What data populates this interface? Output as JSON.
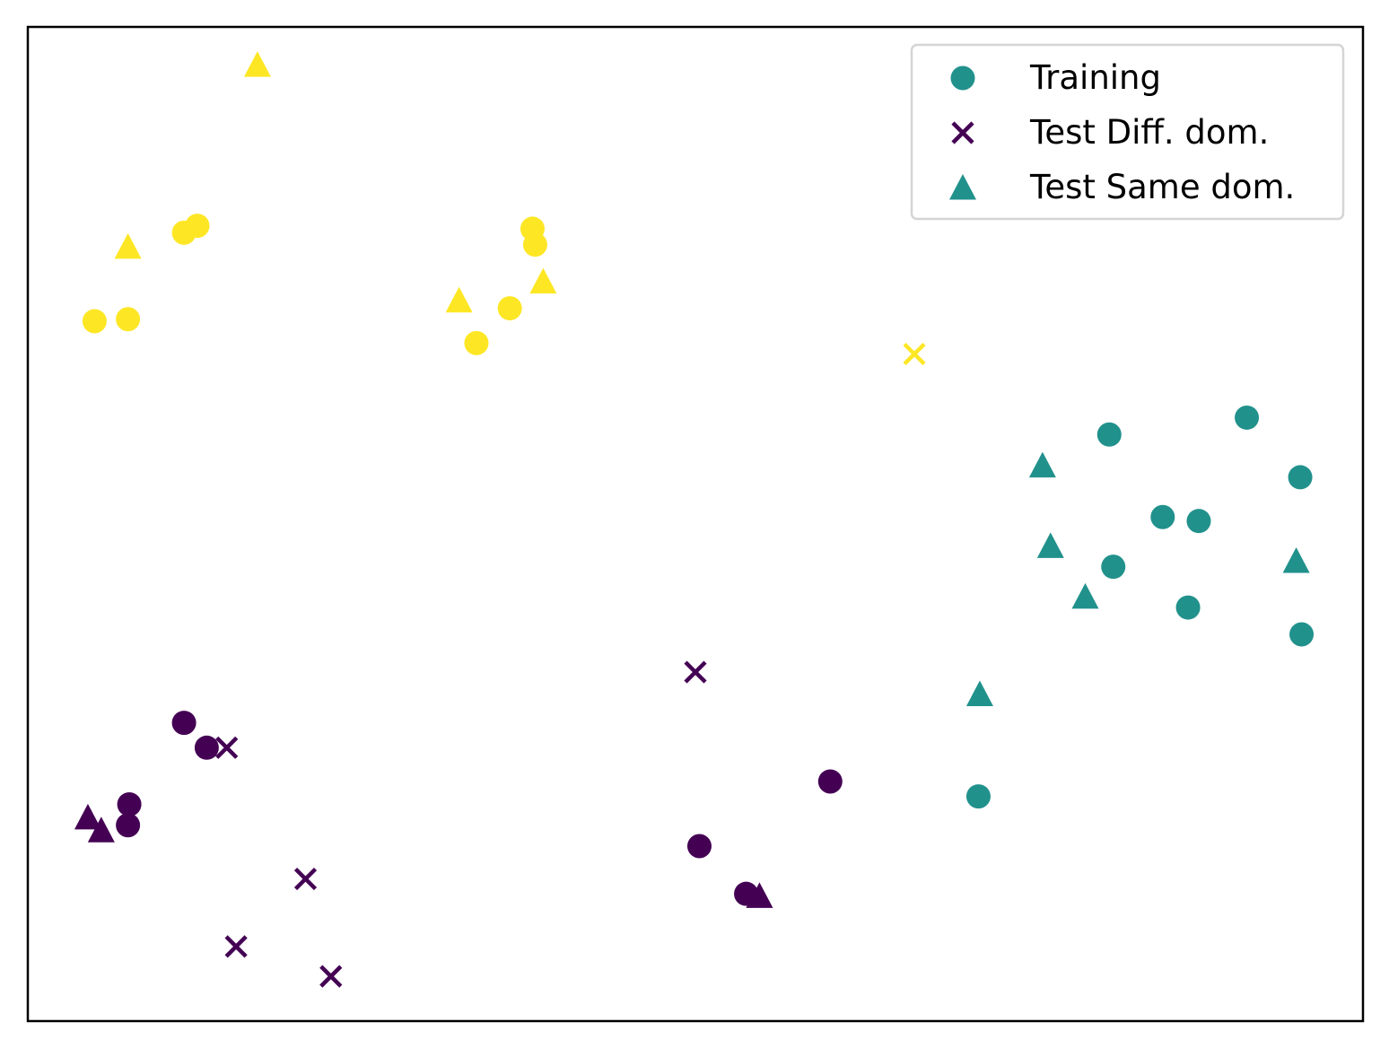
{
  "chart_data": {
    "type": "scatter",
    "title": "",
    "xlabel": "",
    "ylabel": "",
    "xlim": [
      0,
      100
    ],
    "ylim": [
      0,
      100
    ],
    "grid": false,
    "ticks_visible": false,
    "legend": {
      "placement": "top-right",
      "entries": [
        {
          "label": "Training",
          "marker": "circle",
          "color": "#21918c"
        },
        {
          "label": "Test Diff. dom.",
          "marker": "x",
          "color": "#440154"
        },
        {
          "label": "Test Same dom.",
          "marker": "triangle",
          "color": "#21918c"
        }
      ]
    },
    "colors": {
      "class_0": "#440154",
      "class_1": "#21918c",
      "class_2": "#fde725"
    },
    "series": [
      {
        "marker": "circle",
        "points": [
          {
            "x": 11.7,
            "y": 30.0,
            "c": 0
          },
          {
            "x": 13.4,
            "y": 27.5,
            "c": 0
          },
          {
            "x": 7.6,
            "y": 21.8,
            "c": 0
          },
          {
            "x": 7.5,
            "y": 19.7,
            "c": 0
          },
          {
            "x": 60.1,
            "y": 24.1,
            "c": 0
          },
          {
            "x": 50.3,
            "y": 17.6,
            "c": 0
          },
          {
            "x": 53.8,
            "y": 12.8,
            "c": 0
          },
          {
            "x": 81.0,
            "y": 59.0,
            "c": 1
          },
          {
            "x": 91.3,
            "y": 60.7,
            "c": 1
          },
          {
            "x": 95.3,
            "y": 54.7,
            "c": 1
          },
          {
            "x": 85.0,
            "y": 50.7,
            "c": 1
          },
          {
            "x": 87.7,
            "y": 50.3,
            "c": 1
          },
          {
            "x": 81.3,
            "y": 45.7,
            "c": 1
          },
          {
            "x": 86.9,
            "y": 41.6,
            "c": 1
          },
          {
            "x": 95.4,
            "y": 38.9,
            "c": 1
          },
          {
            "x": 71.2,
            "y": 22.6,
            "c": 1
          },
          {
            "x": 11.7,
            "y": 79.3,
            "c": 2
          },
          {
            "x": 12.7,
            "y": 80.0,
            "c": 2
          },
          {
            "x": 5.0,
            "y": 70.4,
            "c": 2
          },
          {
            "x": 7.5,
            "y": 70.6,
            "c": 2
          },
          {
            "x": 37.8,
            "y": 79.7,
            "c": 2
          },
          {
            "x": 38.0,
            "y": 78.1,
            "c": 2
          },
          {
            "x": 36.1,
            "y": 71.7,
            "c": 2
          },
          {
            "x": 33.6,
            "y": 68.2,
            "c": 2
          }
        ]
      },
      {
        "marker": "x",
        "points": [
          {
            "x": 14.9,
            "y": 27.5,
            "c": 0
          },
          {
            "x": 20.8,
            "y": 14.3,
            "c": 0
          },
          {
            "x": 15.6,
            "y": 7.5,
            "c": 0
          },
          {
            "x": 22.7,
            "y": 4.5,
            "c": 0
          },
          {
            "x": 50.0,
            "y": 35.1,
            "c": 0
          },
          {
            "x": 66.4,
            "y": 67.1,
            "c": 2
          }
        ]
      },
      {
        "marker": "triangle",
        "points": [
          {
            "x": 4.5,
            "y": 20.5,
            "c": 0
          },
          {
            "x": 5.5,
            "y": 19.2,
            "c": 0
          },
          {
            "x": 54.8,
            "y": 12.6,
            "c": 0
          },
          {
            "x": 76.0,
            "y": 55.9,
            "c": 1
          },
          {
            "x": 76.6,
            "y": 47.8,
            "c": 1
          },
          {
            "x": 79.2,
            "y": 42.7,
            "c": 1
          },
          {
            "x": 95.0,
            "y": 46.3,
            "c": 1
          },
          {
            "x": 71.3,
            "y": 32.9,
            "c": 1
          },
          {
            "x": 17.2,
            "y": 96.2,
            "c": 2
          },
          {
            "x": 7.5,
            "y": 77.9,
            "c": 2
          },
          {
            "x": 32.3,
            "y": 72.5,
            "c": 2
          },
          {
            "x": 38.6,
            "y": 74.4,
            "c": 2
          }
        ]
      }
    ]
  }
}
